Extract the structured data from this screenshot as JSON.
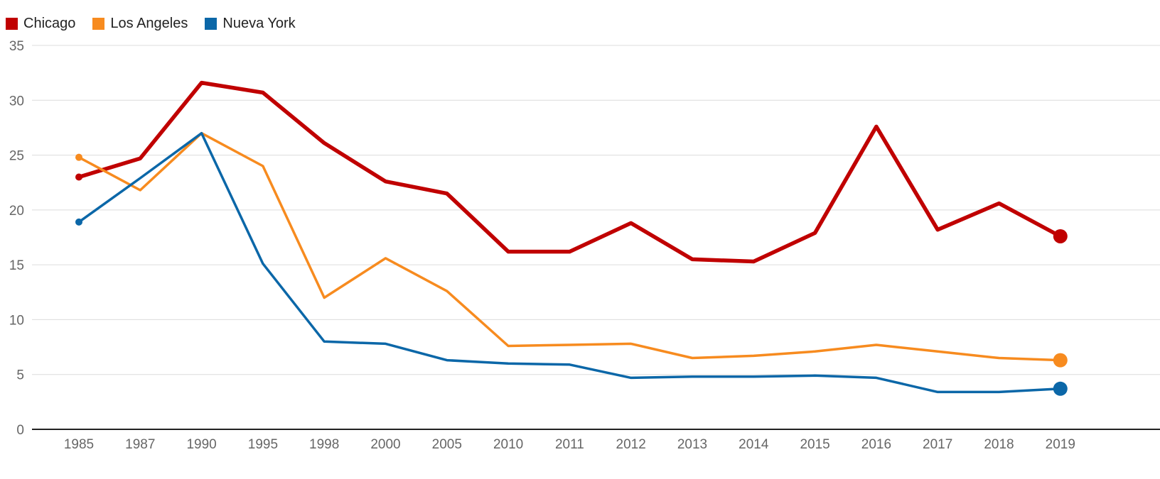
{
  "chart_data": {
    "type": "line",
    "categories": [
      "1985",
      "1987",
      "1990",
      "1995",
      "1998",
      "2000",
      "2005",
      "2010",
      "2011",
      "2012",
      "2013",
      "2014",
      "2015",
      "2016",
      "2017",
      "2018",
      "2019"
    ],
    "series": [
      {
        "name": "Chicago",
        "color": "#c00000",
        "values": [
          23.0,
          24.7,
          31.6,
          30.7,
          26.1,
          22.6,
          21.5,
          16.2,
          16.2,
          18.8,
          15.5,
          15.3,
          17.9,
          27.6,
          18.2,
          20.6,
          17.6
        ]
      },
      {
        "name": "Los Angeles",
        "color": "#f78b1f",
        "values": [
          24.8,
          21.8,
          27.0,
          24.0,
          12.0,
          15.6,
          12.6,
          7.6,
          7.7,
          7.8,
          6.5,
          6.7,
          7.1,
          7.7,
          7.1,
          6.5,
          6.3
        ]
      },
      {
        "name": "Nueva York",
        "color": "#0b67a8",
        "values": [
          18.9,
          22.9,
          27.0,
          15.1,
          8.0,
          7.8,
          6.3,
          6.0,
          5.9,
          4.7,
          4.8,
          4.8,
          4.9,
          4.7,
          3.4,
          3.4,
          3.7
        ]
      }
    ],
    "yticks": [
      0,
      5,
      10,
      15,
      20,
      25,
      30,
      35
    ],
    "ylim": [
      0,
      35
    ],
    "grid": true,
    "legend": "top-left"
  }
}
